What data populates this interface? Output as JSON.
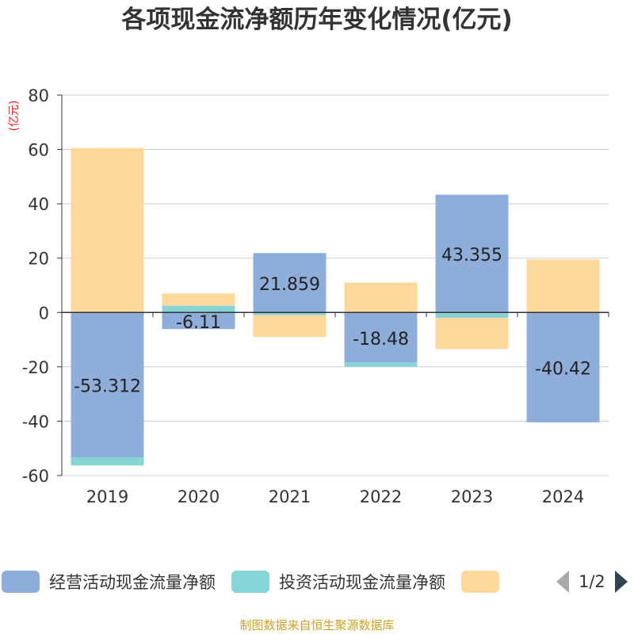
{
  "chart_data": {
    "type": "bar",
    "stacked": true,
    "title": "各项现金流净额历年变化情况(亿元)",
    "ylabel": "(亿元)",
    "ylim": [
      -60,
      80
    ],
    "yticks": [
      80,
      60,
      40,
      20,
      0,
      -20,
      -40,
      -60
    ],
    "categories": [
      "2019",
      "2020",
      "2021",
      "2022",
      "2023",
      "2024"
    ],
    "series": [
      {
        "name": "经营活动现金流量净额",
        "color": "#8eaed9",
        "values": [
          -53.312,
          -6.11,
          21.859,
          -18.48,
          43.355,
          -40.42
        ]
      },
      {
        "name": "投资活动现金流量净额",
        "color": "#86d4d6",
        "values": [
          -3.0,
          2.5,
          -1.0,
          -1.5,
          -2.0,
          0
        ]
      },
      {
        "name": "",
        "color": "#fdd89b",
        "values": [
          60.5,
          4.5,
          -8.0,
          11.0,
          -11.5,
          19.5
        ]
      }
    ],
    "data_labels": [
      "-53.312",
      "-6.11",
      "21.859",
      "-18.48",
      "43.355",
      "-40.42"
    ],
    "grid": true,
    "legend_position": "bottom"
  },
  "legend": {
    "items": [
      "经营活动现金流量净额",
      "投资活动现金流量净额",
      ""
    ],
    "page": "1/2"
  },
  "source": "制图数据来自恒生聚源数据库"
}
